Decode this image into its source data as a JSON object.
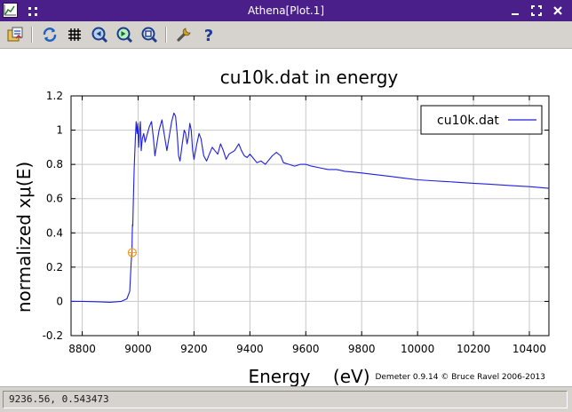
{
  "window": {
    "title": "Athena[Plot.1]"
  },
  "toolbar": {
    "buttons": [
      {
        "name": "save-icon"
      },
      {
        "name": "refresh-icon"
      },
      {
        "name": "grid-icon"
      },
      {
        "name": "zoom-back-icon"
      },
      {
        "name": "zoom-forward-icon"
      },
      {
        "name": "zoom-fit-icon"
      },
      {
        "name": "settings-wrench-icon"
      },
      {
        "name": "help-icon"
      }
    ]
  },
  "status": {
    "coords": "9236.56, 0.543473"
  },
  "chart_data": {
    "type": "line",
    "title": "cu10k.dat in energy",
    "xlabel": "Energy    (eV)",
    "ylabel": "normalized xμ(E)",
    "xlim": [
      8760,
      10470
    ],
    "ylim": [
      -0.2,
      1.2
    ],
    "x_ticks": [
      8800,
      9000,
      9200,
      9400,
      9600,
      9800,
      10000,
      10200,
      10400
    ],
    "y_ticks": [
      -0.2,
      0,
      0.2,
      0.4,
      0.6,
      0.8,
      1,
      1.2
    ],
    "grid": true,
    "legend_position": "top-right",
    "credit": "Demeter 0.9.14 © Bruce Ravel 2006-2013",
    "marker": {
      "x": 8979,
      "y": 0.285
    },
    "series": [
      {
        "name": "cu10k.dat",
        "color": "#1f1fdf",
        "points": [
          [
            8760,
            0.0
          ],
          [
            8800,
            0.0
          ],
          [
            8850,
            -0.002
          ],
          [
            8900,
            -0.005
          ],
          [
            8940,
            0.0
          ],
          [
            8960,
            0.015
          ],
          [
            8970,
            0.06
          ],
          [
            8975,
            0.22
          ],
          [
            8978,
            0.3
          ],
          [
            8979,
            0.4
          ],
          [
            8980,
            0.45
          ],
          [
            8981,
            0.44
          ],
          [
            8983,
            0.6
          ],
          [
            8986,
            0.78
          ],
          [
            8990,
            0.95
          ],
          [
            8993,
            1.05
          ],
          [
            8996,
            0.98
          ],
          [
            8999,
            1.04
          ],
          [
            9002,
            0.9
          ],
          [
            9005,
            1.0
          ],
          [
            9008,
            1.05
          ],
          [
            9011,
            0.88
          ],
          [
            9015,
            0.95
          ],
          [
            9020,
            0.98
          ],
          [
            9025,
            0.93
          ],
          [
            9030,
            0.96
          ],
          [
            9040,
            1.02
          ],
          [
            9048,
            1.05
          ],
          [
            9055,
            0.95
          ],
          [
            9060,
            0.85
          ],
          [
            9065,
            0.9
          ],
          [
            9075,
            1.0
          ],
          [
            9085,
            1.06
          ],
          [
            9095,
            0.96
          ],
          [
            9103,
            0.88
          ],
          [
            9110,
            0.95
          ],
          [
            9120,
            1.05
          ],
          [
            9128,
            1.1
          ],
          [
            9134,
            1.08
          ],
          [
            9140,
            0.97
          ],
          [
            9145,
            0.85
          ],
          [
            9150,
            0.82
          ],
          [
            9158,
            0.92
          ],
          [
            9165,
            1.0
          ],
          [
            9170,
            0.98
          ],
          [
            9175,
            0.92
          ],
          [
            9180,
            0.96
          ],
          [
            9185,
            1.04
          ],
          [
            9190,
            1.0
          ],
          [
            9195,
            0.88
          ],
          [
            9200,
            0.83
          ],
          [
            9210,
            0.92
          ],
          [
            9218,
            0.98
          ],
          [
            9225,
            0.95
          ],
          [
            9235,
            0.85
          ],
          [
            9245,
            0.82
          ],
          [
            9255,
            0.86
          ],
          [
            9265,
            0.9
          ],
          [
            9275,
            0.88
          ],
          [
            9285,
            0.86
          ],
          [
            9295,
            0.92
          ],
          [
            9305,
            0.88
          ],
          [
            9315,
            0.83
          ],
          [
            9325,
            0.86
          ],
          [
            9335,
            0.87
          ],
          [
            9345,
            0.88
          ],
          [
            9360,
            0.92
          ],
          [
            9370,
            0.88
          ],
          [
            9380,
            0.85
          ],
          [
            9390,
            0.84
          ],
          [
            9400,
            0.86
          ],
          [
            9410,
            0.84
          ],
          [
            9425,
            0.81
          ],
          [
            9440,
            0.82
          ],
          [
            9455,
            0.8
          ],
          [
            9465,
            0.82
          ],
          [
            9480,
            0.85
          ],
          [
            9495,
            0.87
          ],
          [
            9510,
            0.85
          ],
          [
            9520,
            0.81
          ],
          [
            9540,
            0.8
          ],
          [
            9560,
            0.79
          ],
          [
            9580,
            0.8
          ],
          [
            9600,
            0.8
          ],
          [
            9620,
            0.79
          ],
          [
            9650,
            0.78
          ],
          [
            9680,
            0.77
          ],
          [
            9710,
            0.77
          ],
          [
            9740,
            0.76
          ],
          [
            9770,
            0.755
          ],
          [
            9800,
            0.75
          ],
          [
            9850,
            0.74
          ],
          [
            9900,
            0.73
          ],
          [
            9950,
            0.72
          ],
          [
            10000,
            0.71
          ],
          [
            10050,
            0.705
          ],
          [
            10100,
            0.7
          ],
          [
            10150,
            0.695
          ],
          [
            10200,
            0.69
          ],
          [
            10250,
            0.685
          ],
          [
            10300,
            0.68
          ],
          [
            10350,
            0.675
          ],
          [
            10400,
            0.67
          ],
          [
            10470,
            0.66
          ]
        ]
      }
    ]
  }
}
